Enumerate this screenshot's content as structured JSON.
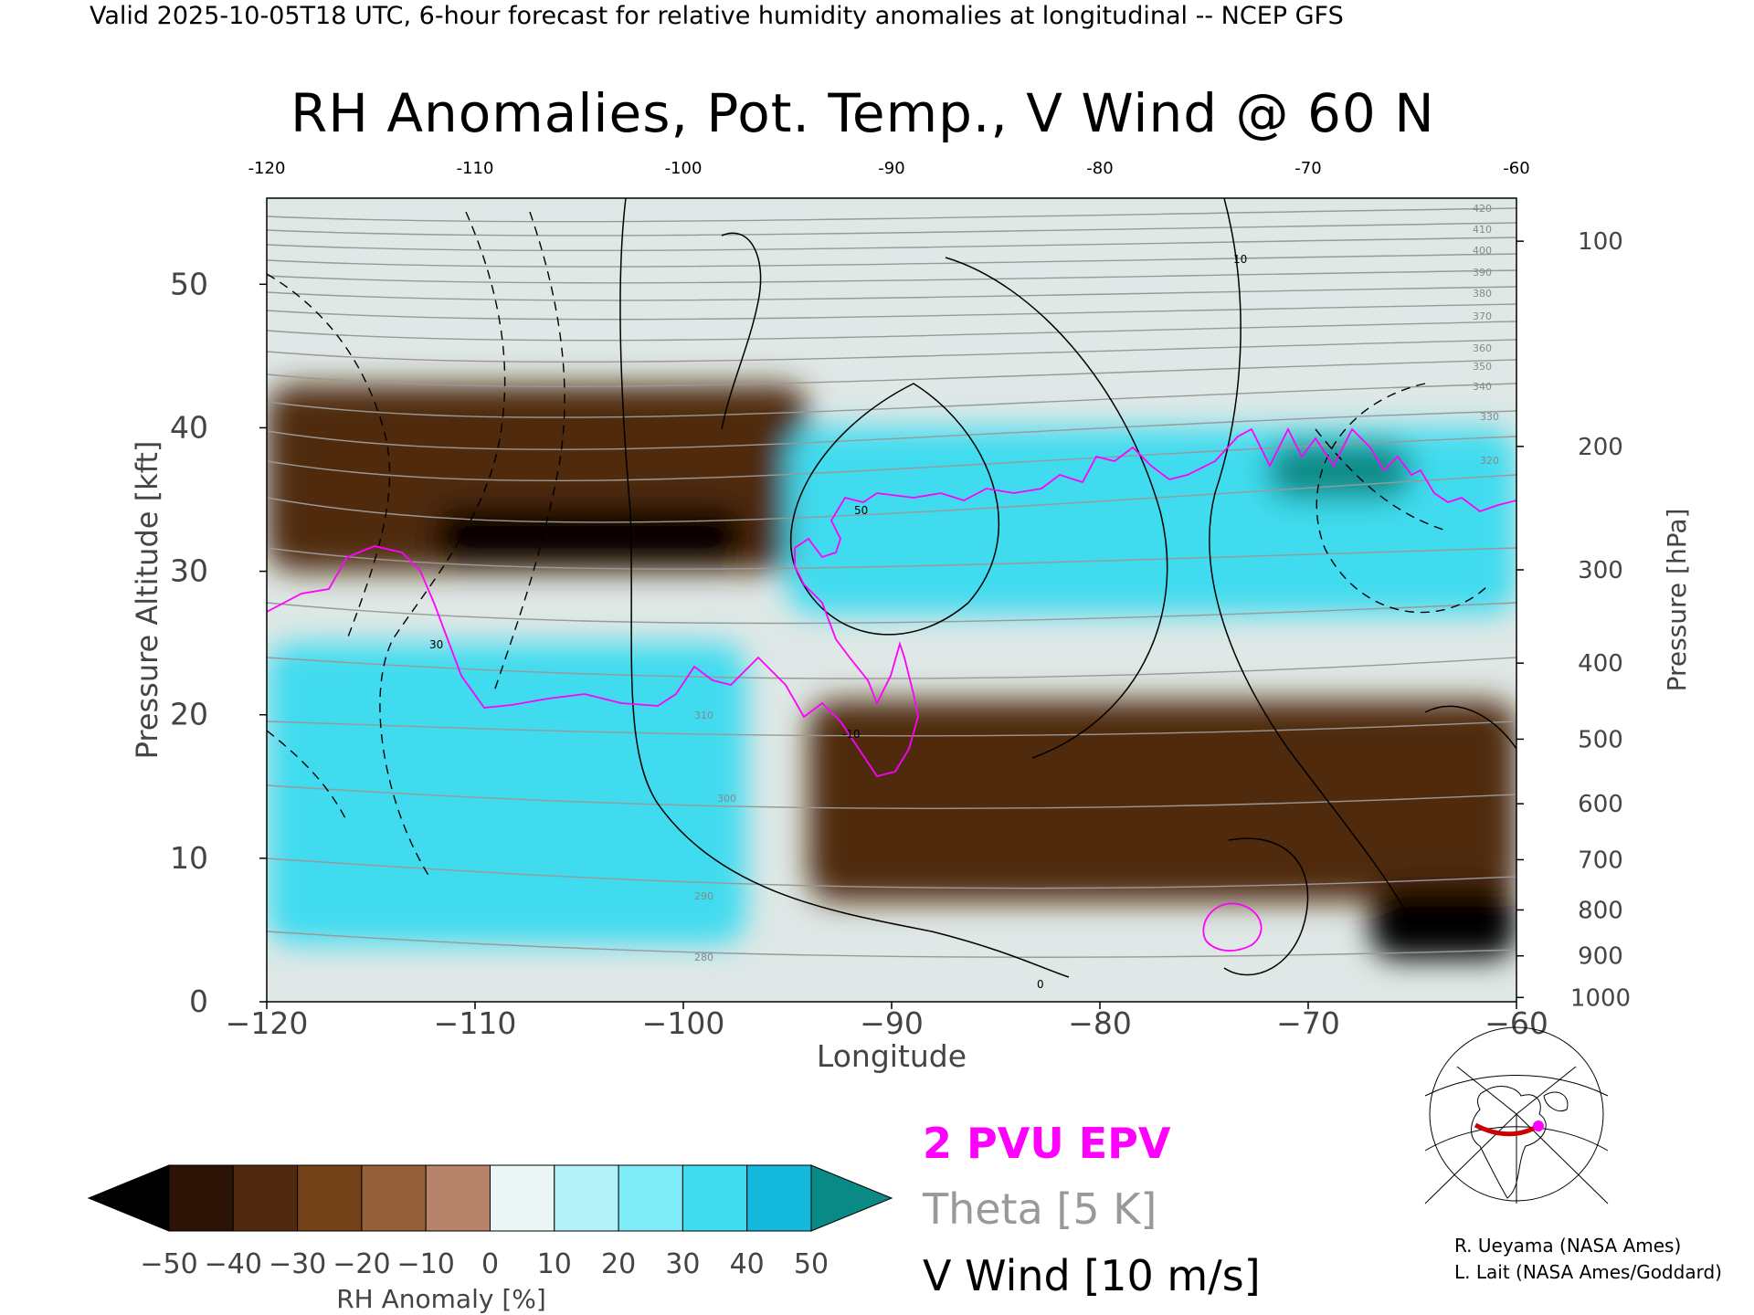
{
  "header": "Valid 2025-10-05T18 UTC, 6-hour forecast for relative humidity anomalies at longitudinal -- NCEP GFS",
  "chart_data": {
    "type": "heatmap",
    "title": "RH Anomalies, Pot. Temp., V Wind @ 60 N",
    "xlabel": "Longitude",
    "ylabel_left": "Pressure Altitude [kft]",
    "ylabel_right": "Pressure [hPa]",
    "xlim": [
      -120,
      -60
    ],
    "ylim_kft": [
      0,
      56
    ],
    "x_ticks": [
      -120,
      -110,
      -100,
      -90,
      -80,
      -70,
      -60
    ],
    "x_tick_labels": [
      "−120",
      "−110",
      "−100",
      "−90",
      "−80",
      "−70",
      "−60"
    ],
    "top_tick_labels": [
      "-120",
      "-110",
      "-100",
      "-90",
      "-80",
      "-70",
      "-60"
    ],
    "y_ticks_kft": [
      0,
      10,
      20,
      30,
      40,
      50
    ],
    "pressure_ticks": [
      {
        "hpa": "100",
        "kft": 53.0
      },
      {
        "hpa": "200",
        "kft": 38.7
      },
      {
        "hpa": "300",
        "kft": 30.1
      },
      {
        "hpa": "400",
        "kft": 23.6
      },
      {
        "hpa": "500",
        "kft": 18.3
      },
      {
        "hpa": "600",
        "kft": 13.8
      },
      {
        "hpa": "700",
        "kft": 9.9
      },
      {
        "hpa": "800",
        "kft": 6.4
      },
      {
        "hpa": "900",
        "kft": 3.2
      },
      {
        "hpa": "1000",
        "kft": 0.3
      }
    ],
    "colorbar": {
      "label": "RH Anomaly [%]",
      "ticks": [
        "−50",
        "−40",
        "−30",
        "−20",
        "−10",
        "0",
        "10",
        "20",
        "30",
        "40",
        "50"
      ],
      "colors": [
        "#2b1405",
        "#4f2a10",
        "#744219",
        "#94603a",
        "#b6836a",
        "#dab19f",
        "#ecf6f4",
        "#b2f2f8",
        "#7eecf6",
        "#40dbef",
        "#14b8db",
        "#0a8aa8"
      ],
      "under_color": "#000000",
      "over_color": "#0a8a85"
    },
    "field_regions": [
      {
        "name": "stratosphere",
        "x": [
          -120,
          -60
        ],
        "y": [
          43,
          56
        ],
        "anomaly": 0
      },
      {
        "name": "upper-dry-west",
        "x": [
          -120,
          -94
        ],
        "y": [
          30,
          43
        ],
        "anomaly": -35
      },
      {
        "name": "dry-core",
        "x": [
          -112,
          -97
        ],
        "y": [
          30.5,
          34.5
        ],
        "anomaly": -55
      },
      {
        "name": "upper-wet-east",
        "x": [
          -95,
          -60
        ],
        "y": [
          27,
          40
        ],
        "anomaly": 30
      },
      {
        "name": "wet-jet-core",
        "x": [
          -72,
          -65
        ],
        "y": [
          35,
          39
        ],
        "anomaly": 55
      },
      {
        "name": "mid-dry",
        "x": [
          -94,
          -60
        ],
        "y": [
          7,
          21
        ],
        "anomaly": -35
      },
      {
        "name": "low-wet-west",
        "x": [
          -120,
          -97
        ],
        "y": [
          4,
          25
        ],
        "anomaly": 30
      },
      {
        "name": "low-dry-east",
        "x": [
          -67,
          -60
        ],
        "y": [
          3,
          8
        ],
        "anomaly": -55
      }
    ],
    "theta_contours_K": [
      "280",
      "290",
      "300",
      "310",
      "320",
      "330",
      "340",
      "350",
      "360",
      "370",
      "380",
      "390",
      "400",
      "410",
      "420"
    ],
    "wind_contours_ms": [
      "0",
      "10",
      "-10",
      "30",
      "50"
    ],
    "legend": [
      "2 PVU EPV",
      "Theta [5 K]",
      "V Wind [10 m/s]"
    ],
    "colors": {
      "epv": "#ff00ff",
      "theta": "#999999",
      "wind": "#000000",
      "map_line": "#cc0000"
    }
  },
  "credits": [
    "R. Ueyama (NASA Ames)",
    "L. Lait (NASA Ames/Goddard)"
  ]
}
